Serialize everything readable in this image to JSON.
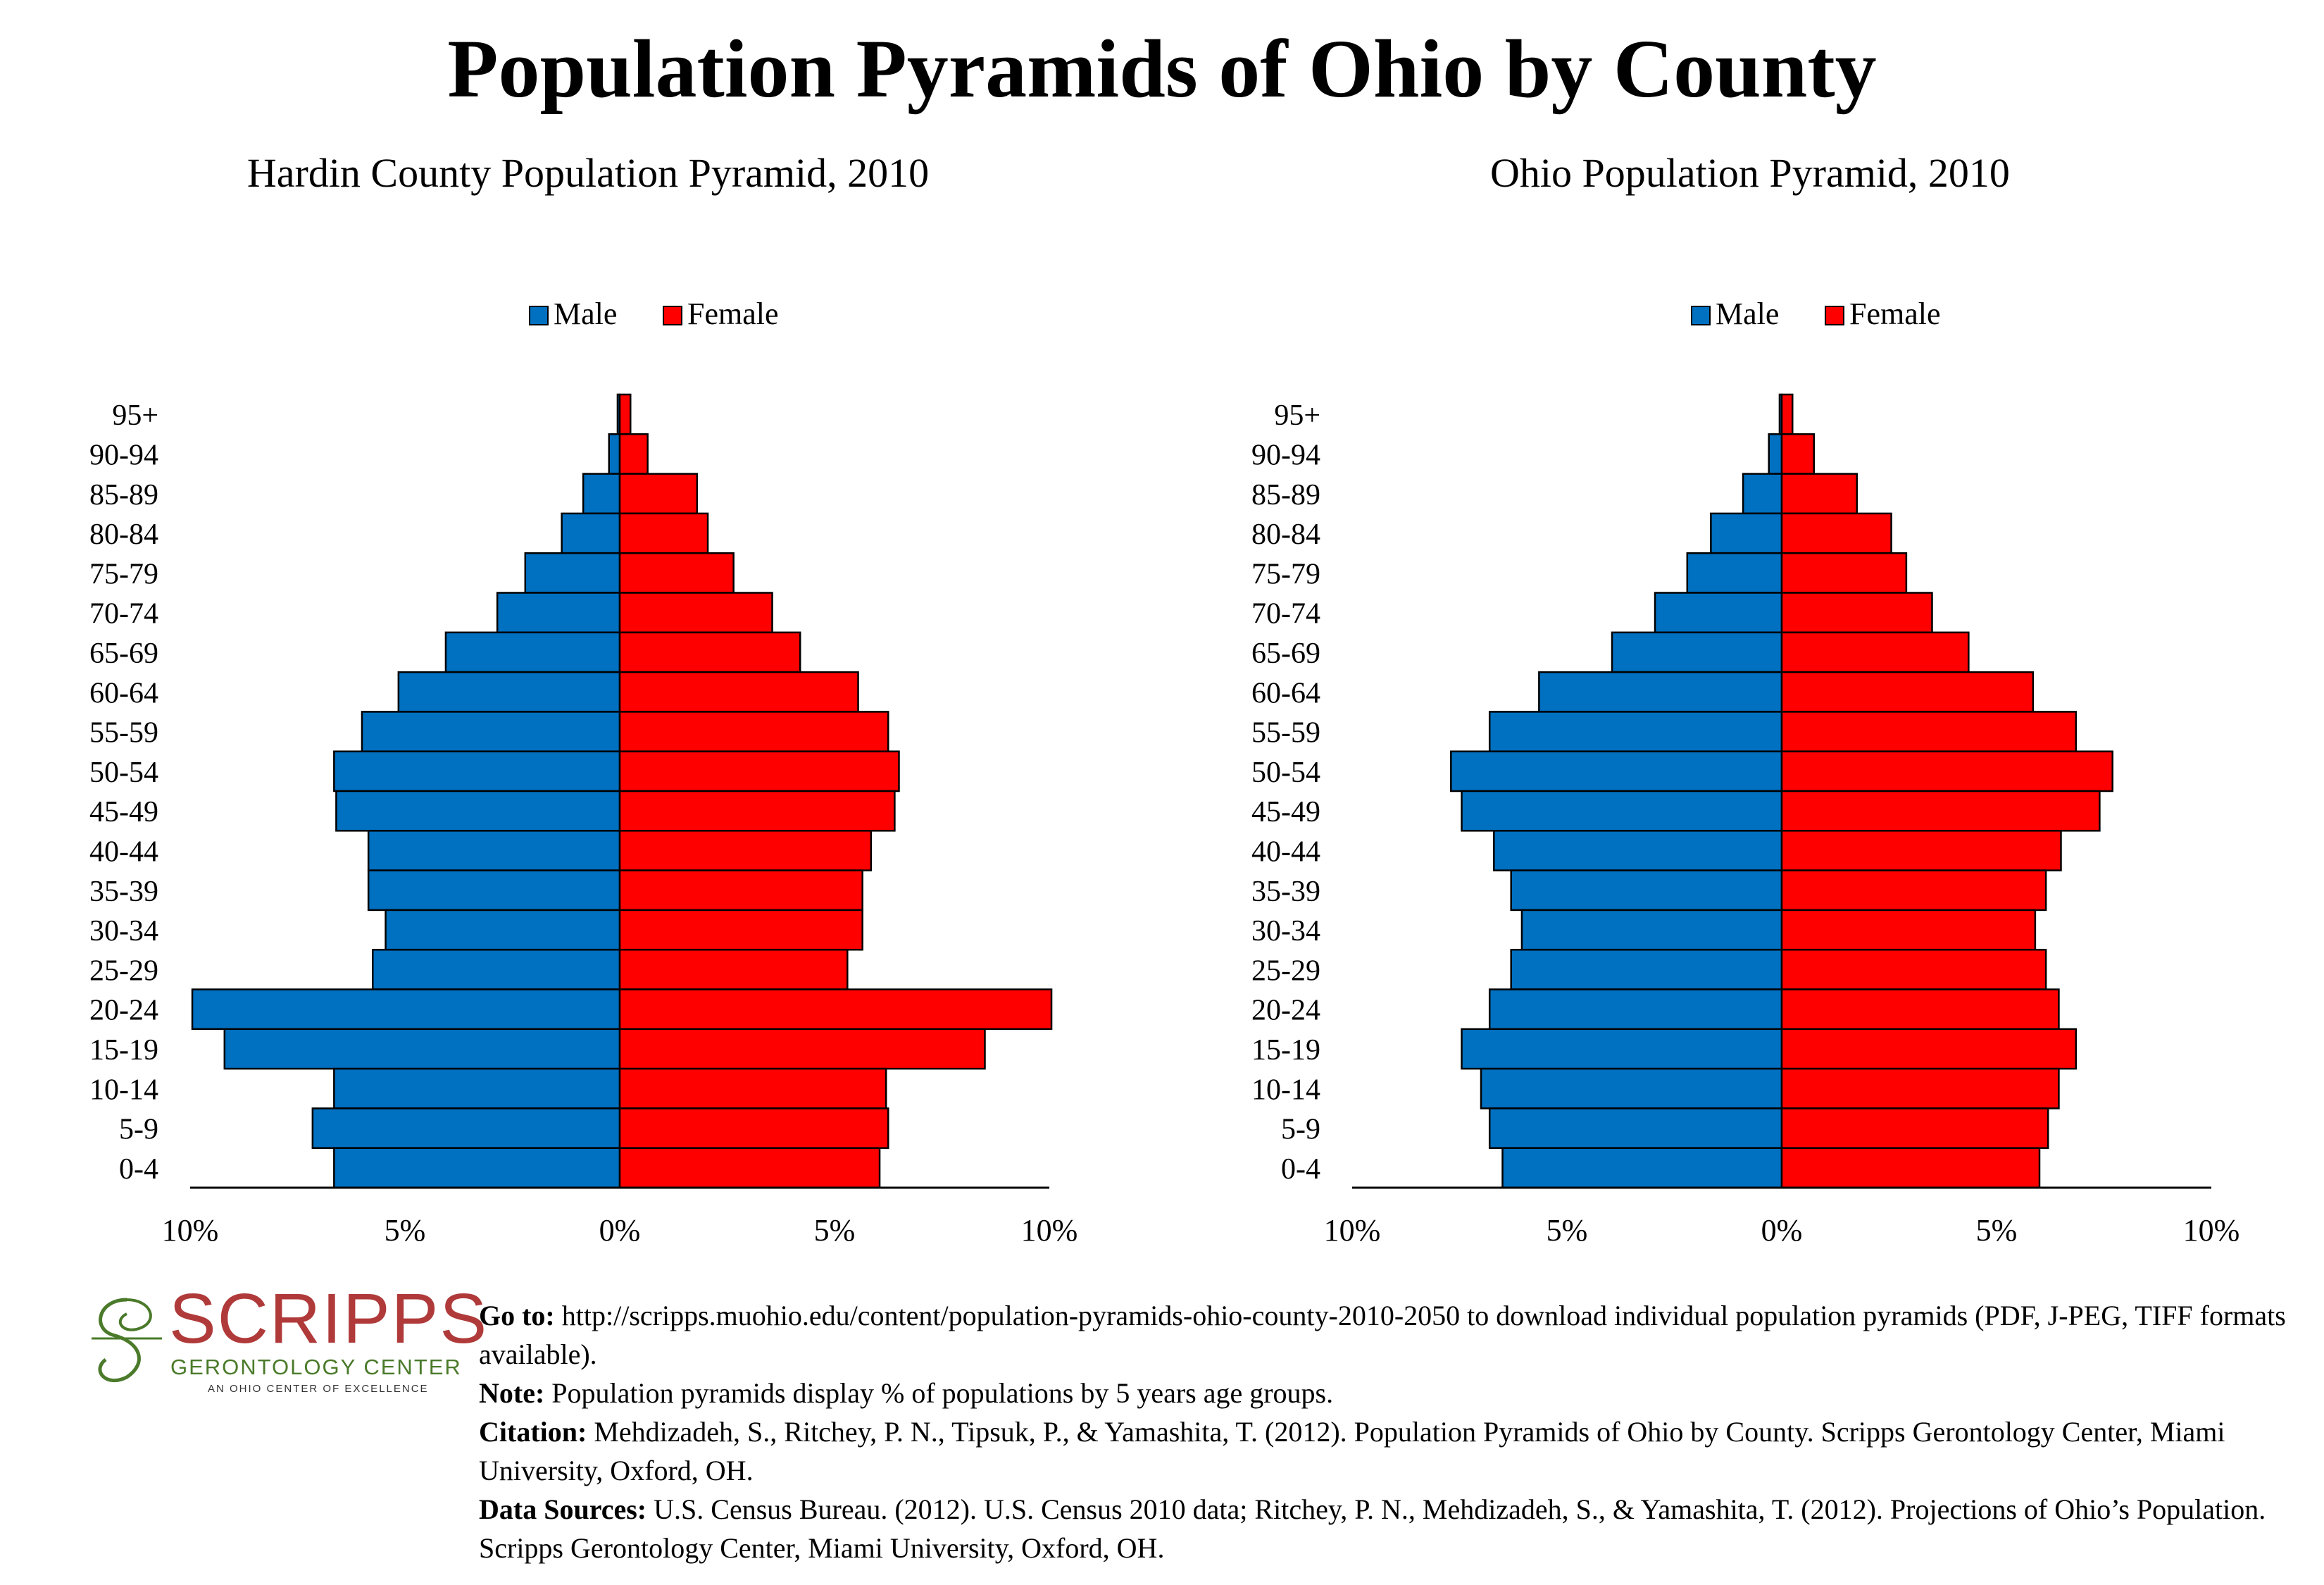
{
  "title": "Population Pyramids of Ohio by County",
  "chart_data": [
    {
      "type": "bar",
      "title": "Hardin County Population Pyramid, 2010",
      "orientation": "horizontal-pyramid",
      "categories": [
        "95+",
        "90-94",
        "85-89",
        "80-84",
        "75-79",
        "70-74",
        "65-69",
        "60-64",
        "55-59",
        "50-54",
        "45-49",
        "40-44",
        "35-39",
        "30-34",
        "25-29",
        "20-24",
        "15-19",
        "10-14",
        "5-9",
        "0-4"
      ],
      "series": [
        {
          "name": "Male",
          "color": "#0070c0",
          "values": [
            0.05,
            0.25,
            0.85,
            1.35,
            2.2,
            2.85,
            4.05,
            5.15,
            6.0,
            6.65,
            6.6,
            5.85,
            5.85,
            5.45,
            5.75,
            9.95,
            9.2,
            6.65,
            7.15,
            6.65
          ]
        },
        {
          "name": "Female",
          "color": "#ff0000",
          "values": [
            0.25,
            0.65,
            1.8,
            2.05,
            2.65,
            3.55,
            4.2,
            5.55,
            6.25,
            6.5,
            6.4,
            5.85,
            5.65,
            5.65,
            5.3,
            10.05,
            8.5,
            6.2,
            6.25,
            6.05
          ]
        }
      ],
      "xlim": [
        -10,
        10
      ],
      "xticks": [
        "10%",
        "5%",
        "0%",
        "5%",
        "10%"
      ],
      "legend": "top-center"
    },
    {
      "type": "bar",
      "title": "Ohio Population Pyramid, 2010",
      "orientation": "horizontal-pyramid",
      "categories": [
        "95+",
        "90-94",
        "85-89",
        "80-84",
        "75-79",
        "70-74",
        "65-69",
        "60-64",
        "55-59",
        "50-54",
        "45-49",
        "40-44",
        "35-39",
        "30-34",
        "25-29",
        "20-24",
        "15-19",
        "10-14",
        "5-9",
        "0-4"
      ],
      "series": [
        {
          "name": "Male",
          "color": "#0070c0",
          "values": [
            0.05,
            0.3,
            0.9,
            1.65,
            2.2,
            2.95,
            3.95,
            5.65,
            6.8,
            7.7,
            7.45,
            6.7,
            6.3,
            6.05,
            6.3,
            6.8,
            7.45,
            7.0,
            6.8,
            6.5
          ]
        },
        {
          "name": "Female",
          "color": "#ff0000",
          "values": [
            0.25,
            0.75,
            1.75,
            2.55,
            2.9,
            3.5,
            4.35,
            5.85,
            6.85,
            7.7,
            7.4,
            6.5,
            6.15,
            5.9,
            6.15,
            6.45,
            6.85,
            6.45,
            6.2,
            6.0
          ]
        }
      ],
      "xlim": [
        -10,
        10
      ],
      "xticks": [
        "10%",
        "5%",
        "0%",
        "5%",
        "10%"
      ],
      "legend": "top-center"
    }
  ],
  "logo": {
    "brand": "SCRIPPS",
    "subtitle": "GERONTOLOGY CENTER",
    "tagline": "AN OHIO CENTER OF EXCELLENCE"
  },
  "footer": {
    "goto_label": "Go to:",
    "goto_text": " http://scripps.muohio.edu/content/population-pyramids-ohio-county-2010-2050 to download individual population pyramids (PDF, J-PEG, TIFF formats available).",
    "note_label": "Note:",
    "note_text": " Population pyramids display % of populations by 5 years age groups.",
    "citation_label": "Citation:",
    "citation_text": " Mehdizadeh, S., Ritchey, P. N., Tipsuk, P., & Yamashita, T. (2012). Population Pyramids of Ohio by County. Scripps Gerontology Center, Miami University, Oxford, OH.",
    "sources_label": "Data Sources:",
    "sources_text": " U.S. Census Bureau. (2012). U.S. Census 2010 data; Ritchey, P. N., Mehdizadeh, S., & Yamashita, T. (2012). Projections of Ohio’s Population. Scripps Gerontology Center, Miami University, Oxford, OH."
  }
}
